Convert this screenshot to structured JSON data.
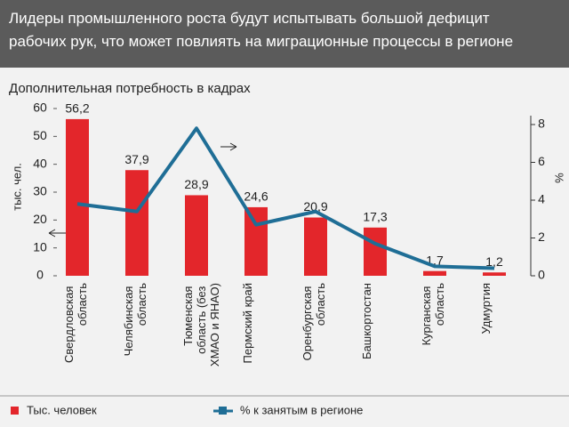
{
  "chart_data": {
    "type": "bar_line",
    "title": "Лидеры промышленного роста будут испытывать большой дефицит рабочих рук, что может повлиять на миграционные процессы в регионе",
    "subtitle": "Дополнительная потребность в кадрах",
    "y_label": "тыс. чел.",
    "y2_label": "%",
    "categories": [
      "Свердловская область",
      "Челябинская область",
      "Тюменская область (без ХМАО и ЯНАО)",
      "Пермский край",
      "Оренбургская область",
      "Башкортостан",
      "Курганская область",
      "Удмуртия"
    ],
    "series": [
      {
        "name": "Тыс. человек",
        "color": "#e3262b",
        "values": [
          56.2,
          37.9,
          28.9,
          24.6,
          20.9,
          17.3,
          1.7,
          1.2
        ],
        "value_labels": [
          "56,2",
          "37,9",
          "28,9",
          "24,6",
          "20,9",
          "17,3",
          "1,7",
          "1,2"
        ]
      },
      {
        "name": "% к занятым в регионе",
        "color": "#1f6e96",
        "axis": "y2",
        "values": [
          3.8,
          3.4,
          7.8,
          2.7,
          3.4,
          1.7,
          0.5,
          0.4
        ]
      }
    ],
    "ylim": [
      0,
      60
    ],
    "yticks": [
      0,
      10,
      20,
      30,
      40,
      50,
      60
    ],
    "y2lim": [
      0,
      8
    ],
    "y2ticks": [
      0,
      2,
      4,
      6,
      8
    ]
  }
}
